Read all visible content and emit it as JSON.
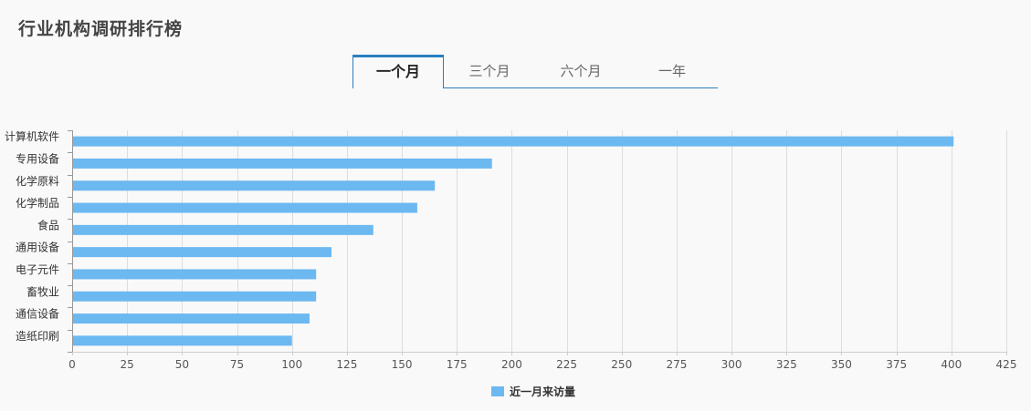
{
  "header": {
    "title": "行业机构调研排行榜"
  },
  "tabs": [
    {
      "label": "一个月",
      "active": true
    },
    {
      "label": "三个月",
      "active": false
    },
    {
      "label": "六个月",
      "active": false
    },
    {
      "label": "一年",
      "active": false
    }
  ],
  "colors": {
    "bar": "#6cb8f0",
    "accent": "#2a7fc0",
    "grid": "#dddddd"
  },
  "chart_data": {
    "type": "bar",
    "orientation": "horizontal",
    "categories": [
      "计算机软件",
      "专用设备",
      "化学原料",
      "化学制品",
      "食品",
      "通用设备",
      "电子元件",
      "畜牧业",
      "通信设备",
      "造纸印刷"
    ],
    "series": [
      {
        "name": "近一月来访量",
        "values": [
          401,
          191,
          165,
          157,
          137,
          118,
          111,
          111,
          108,
          100
        ]
      }
    ],
    "xlim": [
      0,
      425
    ],
    "xticks": [
      0,
      25,
      50,
      75,
      100,
      125,
      150,
      175,
      200,
      225,
      250,
      275,
      300,
      325,
      350,
      375,
      400,
      425
    ],
    "grid": true,
    "legend_position": "bottom-center"
  }
}
